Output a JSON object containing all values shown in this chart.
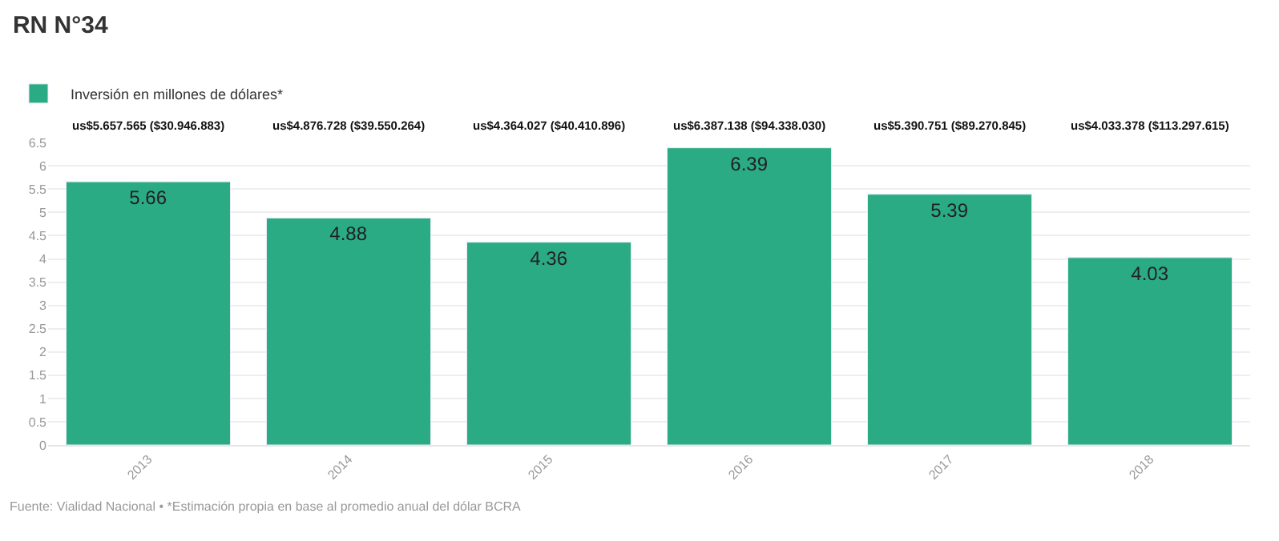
{
  "chart_data": {
    "type": "bar",
    "title": "RN N°34",
    "categories": [
      "2013",
      "2014",
      "2015",
      "2016",
      "2017",
      "2018"
    ],
    "series": [
      {
        "name": "Inversión en millones de dólares*",
        "color": "#2bab84",
        "values": [
          5.66,
          4.88,
          4.36,
          6.39,
          5.39,
          4.03
        ]
      }
    ],
    "data_labels": true,
    "ylim": [
      0,
      6.5
    ],
    "yticks": [
      0,
      0.5,
      1,
      1.5,
      2,
      2.5,
      3,
      3.5,
      4,
      4.5,
      5,
      5.5,
      6,
      6.5
    ],
    "grid": "y",
    "legend": "top left",
    "annotations": [
      "us$5.657.565 ($30.946.883)",
      "us$4.876.728 ($39.550.264)",
      "us$4.364.027 ($40.410.896)",
      "us$6.387.138 ($94.338.030)",
      "us$5.390.751 ($89.270.845)",
      "us$4.033.378 ($113.297.615)",
      "Fuente: Vialidad Nacional • *Estimación propia en base al promedio anual del dólar BCRA"
    ]
  }
}
